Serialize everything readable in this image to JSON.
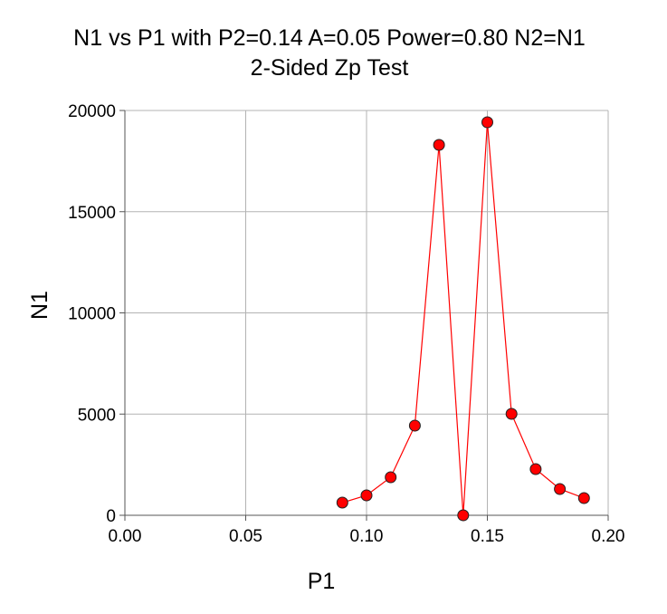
{
  "chart_data": {
    "type": "line",
    "title": "N1 vs P1 with P2=0.14 A=0.05 Power=0.80 N2=N1",
    "subtitle": "2-Sided Zp Test",
    "xlabel": "P1",
    "ylabel": "N1",
    "xlim": [
      0,
      0.2
    ],
    "ylim": [
      0,
      20000
    ],
    "grid": true,
    "xticks": [
      0,
      0.05,
      0.1,
      0.15,
      0.2
    ],
    "xtick_labels": [
      "0.00",
      "0.05",
      "0.10",
      "0.15",
      "0.20"
    ],
    "yticks": [
      0,
      5000,
      10000,
      15000,
      20000
    ],
    "ytick_labels": [
      "0",
      "5000",
      "10000",
      "15000",
      "20000"
    ],
    "series": [
      {
        "name": "N1",
        "color": "#ff0000",
        "x": [
          0.09,
          0.1,
          0.11,
          0.12,
          0.13,
          0.14,
          0.15,
          0.16,
          0.17,
          0.18,
          0.19
        ],
        "y": [
          626,
          984,
          1879,
          4430,
          18300,
          0,
          19418,
          5011,
          2282,
          1298,
          850
        ]
      }
    ]
  }
}
